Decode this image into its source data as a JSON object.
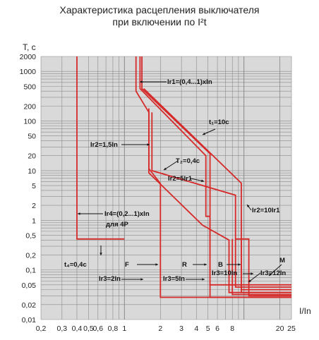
{
  "title_lines": [
    "Характеристика расцепления выключателя",
    "при включении по I²t"
  ],
  "chart_data": {
    "type": "line",
    "title": "Характеристика расцепления выключателя при включении по I²t",
    "xlabel": "I/In",
    "ylabel": "T, с",
    "xscale": "log",
    "yscale": "log",
    "xlim": [
      0.2,
      25
    ],
    "ylim": [
      0.01,
      2000
    ],
    "grid": true,
    "x_ticks": [
      {
        "v": 0.2,
        "t": "0,2"
      },
      {
        "v": 0.3,
        "t": "0,3"
      },
      {
        "v": 0.4,
        "t": "0,4"
      },
      {
        "v": 0.5,
        "t": "0,5"
      },
      {
        "v": 0.6,
        "t": "0,6"
      },
      {
        "v": 0.8,
        "t": "0,8"
      },
      {
        "v": 1,
        "t": "1"
      },
      {
        "v": 2,
        "t": "2"
      },
      {
        "v": 3,
        "t": "3"
      },
      {
        "v": 4,
        "t": "4"
      },
      {
        "v": 5,
        "t": "5"
      },
      {
        "v": 6,
        "t": "6"
      },
      {
        "v": 8,
        "t": "8"
      },
      {
        "v": 20,
        "t": "20"
      },
      {
        "v": 25,
        "t": "25"
      }
    ],
    "y_ticks": [
      {
        "v": 2000,
        "t": "2000"
      },
      {
        "v": 1000,
        "t": "1000"
      },
      {
        "v": 500,
        "t": "500"
      },
      {
        "v": 200,
        "t": "200"
      },
      {
        "v": 100,
        "t": "100"
      },
      {
        "v": 50,
        "t": "50"
      },
      {
        "v": 20,
        "t": "20"
      },
      {
        "v": 10,
        "t": "10"
      },
      {
        "v": 5,
        "t": "5"
      },
      {
        "v": 2,
        "t": "2"
      },
      {
        "v": 1,
        "t": "1"
      },
      {
        "v": 0.5,
        "t": "0,5"
      },
      {
        "v": 0.2,
        "t": "0,2"
      },
      {
        "v": 0.1,
        "t": "0,1"
      },
      {
        "v": 0.05,
        "t": "0,05"
      },
      {
        "v": 0.02,
        "t": "0,02"
      },
      {
        "v": 0.01,
        "t": "0,01"
      }
    ],
    "series": [
      {
        "x": [
          0.4,
          0.4,
          1.0
        ],
        "y": [
          2000,
          0.42,
          0.42
        ]
      },
      {
        "x": [
          1.25,
          1.25,
          1.6,
          1.6,
          2.0,
          2.0,
          25
        ],
        "y": [
          2000,
          400,
          150,
          11,
          5.5,
          0.028,
          0.028
        ]
      },
      {
        "x": [
          1.35,
          1.35,
          4.8,
          4.8,
          5.2,
          5.2,
          25
        ],
        "y": [
          2000,
          450,
          20,
          1.2,
          1.2,
          0.028,
          0.028
        ]
      },
      {
        "x": [
          1.4,
          1.4,
          5.2,
          5.2,
          25
        ],
        "y": [
          2000,
          450,
          22,
          0.05,
          0.05
        ]
      },
      {
        "x": [
          1.6,
          1.6,
          4.5,
          7.5,
          7.5,
          25
        ],
        "y": [
          180,
          9,
          0.8,
          0.4,
          0.035,
          0.035
        ]
      },
      {
        "x": [
          1.7,
          1.7,
          8.5,
          8.5,
          25
        ],
        "y": [
          150,
          10,
          3.2,
          0.045,
          0.045
        ]
      },
      {
        "x": [
          1.45,
          9.5,
          9.5,
          25
        ],
        "y": [
          450,
          5.6,
          0.04,
          0.04
        ]
      },
      {
        "x": [
          8.0,
          8.0,
          25
        ],
        "y": [
          0.42,
          0.032,
          0.032
        ]
      },
      {
        "x": [
          9.5,
          9.5,
          25
        ],
        "y": [
          0.42,
          0.035,
          0.035
        ]
      },
      {
        "x": [
          8.5,
          11.0,
          11.0,
          25
        ],
        "y": [
          0.42,
          0.42,
          0.03,
          0.03
        ]
      }
    ],
    "annotations": [
      {
        "text": "Ir1=(0,4...1)xIn"
      },
      {
        "text": "t₁=10c"
      },
      {
        "text": "Ir2=1,5In"
      },
      {
        "text": "T₂=0,4c"
      },
      {
        "text": "Ir2=5Ir1"
      },
      {
        "text": "Ir2=10Ir1"
      },
      {
        "text": "Ir4=(0,2...1)xIn"
      },
      {
        "text": "для 4P"
      },
      {
        "text": "t₄=0,4c"
      },
      {
        "text": "F"
      },
      {
        "text": "R"
      },
      {
        "text": "B"
      },
      {
        "text": "M"
      },
      {
        "text": "Ir3=2In"
      },
      {
        "text": "Ir3=5In"
      },
      {
        "text": "Ir3=10In"
      },
      {
        "text": "Ir3=12In"
      }
    ],
    "colors": {
      "curve": "#d62a2a",
      "grid": "#8a8a8a",
      "plot_bg": "#d9d9d9"
    }
  }
}
